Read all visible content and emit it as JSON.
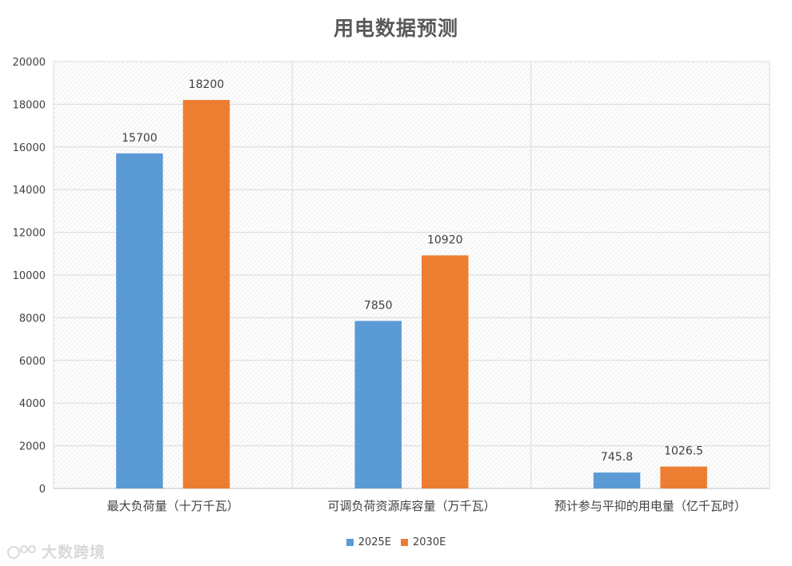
{
  "chart_data": {
    "type": "bar",
    "title": "用电数据预测",
    "categories": [
      "最大负荷量（十万千瓦）",
      "可调负荷资源库容量（万千瓦）",
      "预计参与平抑的用电量（亿千瓦时）"
    ],
    "series": [
      {
        "name": "2025E",
        "values": [
          15700,
          7850,
          745.8
        ],
        "labels": [
          "15700",
          "7850",
          "745.8"
        ],
        "color": "#5b9bd5"
      },
      {
        "name": "2030E",
        "values": [
          18200,
          10920,
          1026.5
        ],
        "labels": [
          "18200",
          "10920",
          "1026.5"
        ],
        "color": "#ed7d31"
      }
    ],
    "ylim": [
      0,
      20000
    ],
    "yticks": [
      "0",
      "2000",
      "4000",
      "6000",
      "8000",
      "10000",
      "12000",
      "14000",
      "16000",
      "18000",
      "20000"
    ],
    "grid": true,
    "legend_position": "bottom"
  },
  "watermark": {
    "text": "大数跨境"
  }
}
